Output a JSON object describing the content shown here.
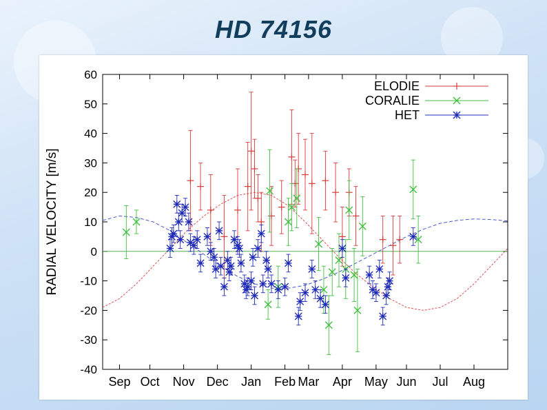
{
  "slide": {
    "title": "HD 74156"
  },
  "chart_data": {
    "type": "scatter",
    "ylabel": "RADIAL VELOCITY  [m/s]",
    "xlabel": "",
    "xlim": [
      0,
      12
    ],
    "ylim": [
      -40,
      60
    ],
    "yticks": [
      60,
      50,
      40,
      30,
      20,
      10,
      0,
      -10,
      -20,
      -30,
      -40
    ],
    "xtick_labels": [
      "Sep",
      "Oct",
      "Nov",
      "Dec",
      "Jan",
      "Feb",
      "Mar",
      "Apr",
      "May",
      "Jun",
      "Jul",
      "Aug"
    ],
    "xtick_positions": [
      0.5,
      1.4,
      2.4,
      3.4,
      4.4,
      5.4,
      6.1,
      7.1,
      8.1,
      9.0,
      10.0,
      11.0
    ],
    "legend_position": "top-right",
    "model_curve": {
      "name": "orbit model",
      "color": "#e05050",
      "x": [
        0,
        0.5,
        1,
        1.5,
        2,
        2.5,
        3,
        3.5,
        4,
        4.5,
        5,
        5.5,
        6,
        6.5,
        7,
        7.5,
        8,
        8.5,
        9,
        9.5,
        10,
        10.5,
        11,
        11.5,
        12
      ],
      "y": [
        -19,
        -16,
        -11,
        -5,
        1,
        7,
        12,
        16,
        19,
        20,
        19,
        15.5,
        10,
        4,
        -2,
        -7.5,
        -12,
        -16,
        -19,
        -20,
        -19,
        -16,
        -11,
        -5,
        1
      ]
    },
    "model_curve_blue": {
      "name": "dashed model",
      "color": "#4a5ac8",
      "x": [
        0,
        0.5,
        1,
        1.5,
        2,
        2.5,
        3,
        3.5,
        4,
        4.5,
        5,
        5.5,
        6,
        6.5,
        7,
        7.5,
        8,
        8.5,
        9,
        9.5,
        10,
        10.5,
        11,
        11.5,
        12
      ],
      "y": [
        10.5,
        12,
        11.5,
        10,
        7,
        3,
        -1,
        -5,
        -8.5,
        -11,
        -12.5,
        -12.5,
        -11.5,
        -9.5,
        -7,
        -4,
        -1,
        2,
        5,
        7.5,
        9.5,
        10.5,
        11,
        10.8,
        10.3
      ]
    },
    "zero_line": {
      "value": 0,
      "color": "#5aaa5a"
    },
    "series": [
      {
        "name": "ELODIE",
        "marker": "+",
        "color": "#d63b3b",
        "points": [
          [
            2.6,
            24,
            17
          ],
          [
            2.9,
            22,
            8
          ],
          [
            3.2,
            14,
            12
          ],
          [
            3.6,
            5,
            14
          ],
          [
            4.0,
            14,
            14
          ],
          [
            4.3,
            22,
            15
          ],
          [
            4.4,
            34,
            20
          ],
          [
            4.5,
            28,
            10
          ],
          [
            4.6,
            18,
            8
          ],
          [
            4.7,
            10,
            10
          ],
          [
            5.0,
            12,
            10
          ],
          [
            5.3,
            15,
            9
          ],
          [
            5.6,
            32,
            16
          ],
          [
            5.7,
            23,
            8
          ],
          [
            5.8,
            28,
            12
          ],
          [
            6.0,
            26,
            12
          ],
          [
            6.2,
            23,
            17
          ],
          [
            6.6,
            24,
            10
          ],
          [
            6.9,
            20,
            10
          ],
          [
            7.1,
            5,
            10
          ],
          [
            7.3,
            20,
            8
          ],
          [
            7.5,
            12,
            10
          ],
          [
            8.3,
            4,
            8
          ],
          [
            8.6,
            2,
            10
          ],
          [
            8.8,
            4,
            8
          ]
        ]
      },
      {
        "name": "CORALIE",
        "marker": "x",
        "color": "#3fbf3f",
        "points": [
          [
            0.7,
            6.5,
            9
          ],
          [
            1.0,
            10,
            4
          ],
          [
            4.95,
            20.5,
            14
          ],
          [
            5.5,
            10,
            8
          ],
          [
            5.6,
            15,
            8
          ],
          [
            5.75,
            18,
            10
          ],
          [
            6.4,
            2.5,
            9
          ],
          [
            6.55,
            -13,
            8
          ],
          [
            6.7,
            -25,
            10
          ],
          [
            6.8,
            -7,
            8
          ],
          [
            7.0,
            -3,
            9
          ],
          [
            7.2,
            -6,
            10
          ],
          [
            7.3,
            14,
            10
          ],
          [
            7.45,
            -8,
            9
          ],
          [
            7.55,
            -20,
            14
          ],
          [
            7.7,
            8.5,
            10
          ],
          [
            9.2,
            21,
            10
          ],
          [
            9.35,
            4,
            8
          ],
          [
            4.9,
            -18,
            5
          ],
          [
            5.2,
            -12,
            7
          ]
        ]
      },
      {
        "name": "HET",
        "marker": "*",
        "color": "#1f2bb8",
        "points": [
          [
            2.0,
            1,
            3
          ],
          [
            2.05,
            5,
            3
          ],
          [
            2.1,
            6,
            3
          ],
          [
            2.2,
            16,
            3
          ],
          [
            2.25,
            10,
            3
          ],
          [
            2.3,
            4,
            3
          ],
          [
            2.35,
            13,
            3
          ],
          [
            2.45,
            15,
            3
          ],
          [
            2.55,
            10,
            3
          ],
          [
            2.6,
            3,
            3
          ],
          [
            2.7,
            2,
            3
          ],
          [
            2.8,
            4,
            3
          ],
          [
            2.9,
            -4,
            3
          ],
          [
            3.1,
            5,
            3
          ],
          [
            3.2,
            0,
            3
          ],
          [
            3.3,
            -2,
            3
          ],
          [
            3.35,
            -6,
            3
          ],
          [
            3.45,
            7,
            3
          ],
          [
            3.5,
            -5,
            3
          ],
          [
            3.6,
            -12,
            3
          ],
          [
            3.7,
            -3,
            3
          ],
          [
            3.75,
            -7,
            3
          ],
          [
            3.8,
            -5,
            3
          ],
          [
            3.9,
            4,
            3
          ],
          [
            4.0,
            2,
            3
          ],
          [
            4.05,
            1,
            3
          ],
          [
            4.1,
            -4,
            3
          ],
          [
            4.2,
            -11,
            3
          ],
          [
            4.25,
            -13,
            3
          ],
          [
            4.3,
            -12,
            3
          ],
          [
            4.4,
            -10,
            3
          ],
          [
            4.45,
            -2,
            3
          ],
          [
            4.5,
            -15,
            3
          ],
          [
            4.6,
            1,
            3
          ],
          [
            4.7,
            6,
            3
          ],
          [
            4.75,
            -11,
            3
          ],
          [
            4.85,
            -3,
            3
          ],
          [
            4.9,
            -6,
            3
          ],
          [
            5.0,
            -11,
            3
          ],
          [
            5.2,
            -13,
            3
          ],
          [
            5.4,
            -12,
            3
          ],
          [
            5.5,
            -4,
            3
          ],
          [
            5.8,
            -22,
            3
          ],
          [
            5.85,
            -17,
            3
          ],
          [
            6.0,
            -14,
            3
          ],
          [
            6.2,
            -6,
            3
          ],
          [
            6.3,
            -13,
            3
          ],
          [
            6.45,
            -16,
            3
          ],
          [
            6.6,
            -18,
            3
          ],
          [
            7.1,
            1,
            3
          ],
          [
            7.2,
            -9,
            3
          ],
          [
            7.9,
            -8,
            3
          ],
          [
            8.0,
            -13,
            3
          ],
          [
            8.1,
            -14,
            3
          ],
          [
            8.2,
            -6,
            3
          ],
          [
            8.3,
            -22,
            3
          ],
          [
            8.4,
            -15,
            3
          ],
          [
            8.45,
            -12,
            3
          ],
          [
            8.5,
            -10,
            3
          ],
          [
            9.2,
            5,
            3
          ]
        ]
      }
    ]
  }
}
